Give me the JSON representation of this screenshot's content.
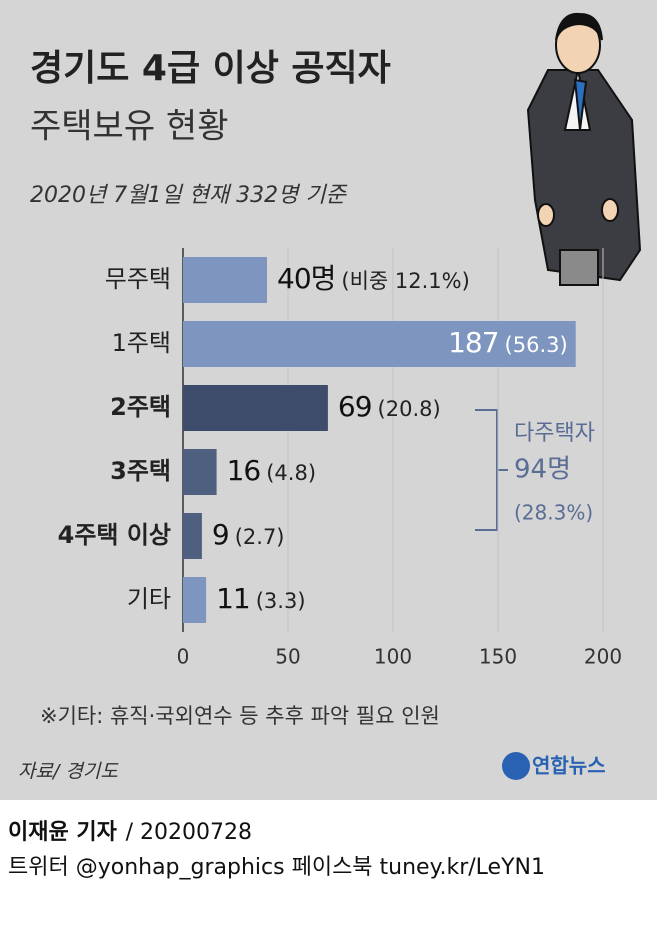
{
  "chart_data": {
    "type": "bar",
    "orientation": "horizontal",
    "title": "경기도 4급 이상 공직자",
    "subtitle": "주택보유 현황",
    "note": "2020년 7월1일 현재 332명 기준",
    "categories": [
      "무주택",
      "1주택",
      "2주택",
      "3주택",
      "4주택 이상",
      "기타"
    ],
    "values": [
      40,
      187,
      69,
      16,
      9,
      11
    ],
    "value_labels": [
      "40명",
      "187",
      "69",
      "16",
      "9",
      "11"
    ],
    "share_labels": [
      "(비중 12.1%)",
      "(56.3)",
      "(20.8)",
      "(4.8)",
      "(2.7)",
      "(3.3)"
    ],
    "colors": [
      "#7d95bf",
      "#7d95bf",
      "#3e4c6b",
      "#4f5f80",
      "#4f5f80",
      "#7d95bf"
    ],
    "bold": [
      false,
      false,
      true,
      true,
      true,
      false
    ],
    "xlim": [
      0,
      200
    ],
    "xticks": [
      0,
      50,
      100,
      150,
      200
    ],
    "grid": true,
    "annotation": {
      "label": "다주택자",
      "count": "94명",
      "share": "(28.3%)"
    },
    "footnote": "※기타: 휴직·국외연수 등 추후 파악 필요 인원",
    "source": "자료/ 경기도",
    "logo": "연합뉴스"
  },
  "credit": {
    "author": "이재윤 기자",
    "date": "/ 20200728",
    "social": "트위터 @yonhap_graphics  페이스북 tuney.kr/LeYN1"
  }
}
